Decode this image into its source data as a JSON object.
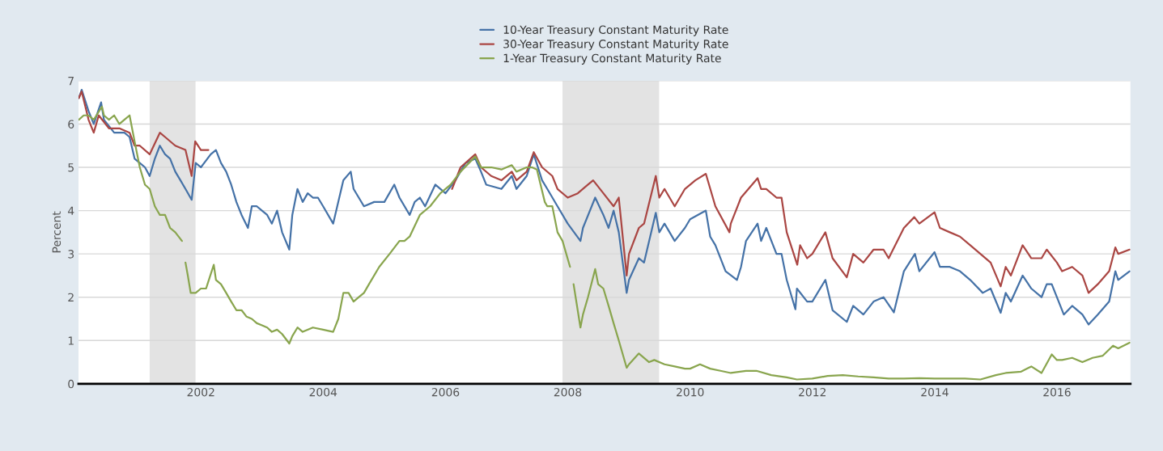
{
  "chart_data": {
    "type": "line",
    "ylabel": "Percent",
    "legend": "top",
    "grid": "y",
    "marker": "none",
    "line_style": "solid",
    "xlim": [
      "2000-01-01",
      "2017-03-15"
    ],
    "xticks": [
      "2002",
      "2004",
      "2006",
      "2008",
      "2010",
      "2012",
      "2014",
      "2016"
    ],
    "ylim": [
      0,
      7
    ],
    "yticks": [
      0,
      1,
      2,
      3,
      4,
      5,
      6,
      7
    ],
    "bands": [
      {
        "axis": "x",
        "from": "2001-03-01",
        "to": "2001-11-30",
        "color": "#e3e3e3"
      },
      {
        "axis": "x",
        "from": "2007-12-01",
        "to": "2009-06-30",
        "color": "#e3e3e3"
      }
    ],
    "series": [
      {
        "name": "10-Year Treasury Constant Maturity Rate",
        "color": "#4572a7",
        "x": [
          "2000-01-03",
          "2000-01-20",
          "2000-03",
          "2000-04",
          "2000-05-15",
          "2000-06",
          "2000-08",
          "2000-10",
          "2000-11",
          "2000-12",
          "2001-01",
          "2001-02",
          "2001-03",
          "2001-04",
          "2001-05",
          "2001-06",
          "2001-07",
          "2001-08",
          "2001-09",
          "2001-10",
          "2001-11-07",
          "2001-11-28",
          "2001-12",
          "2002-01",
          "2002-03",
          "2002-04",
          "2002-05",
          "2002-06",
          "2002-07",
          "2002-08",
          "2002-09",
          "2002-10-09",
          "2002-11",
          "2002-12",
          "2003-01",
          "2003-02",
          "2003-03",
          "2003-04",
          "2003-05",
          "2003-06-13",
          "2003-07",
          "2003-08",
          "2003-09",
          "2003-10",
          "2003-11",
          "2003-12",
          "2004-01",
          "2004-03",
          "2004-05",
          "2004-06-14",
          "2004-07",
          "2004-09",
          "2004-11",
          "2005-01",
          "2005-03",
          "2005-04",
          "2005-06",
          "2005-07",
          "2005-08",
          "2005-09",
          "2005-11",
          "2006-01",
          "2006-03",
          "2006-05",
          "2006-06-28",
          "2006-08",
          "2006-09",
          "2006-12",
          "2007-02",
          "2007-03",
          "2007-05",
          "2007-06-12",
          "2007-08",
          "2007-09",
          "2007-11",
          "2008-01",
          "2008-03-17",
          "2008-04",
          "2008-06-13",
          "2008-08",
          "2008-09",
          "2008-10",
          "2008-11",
          "2008-12-18",
          "2009-01",
          "2009-03",
          "2009-04",
          "2009-06-10",
          "2009-07",
          "2009-08",
          "2009-10",
          "2009-12",
          "2010-01",
          "2010-04-05",
          "2010-05",
          "2010-06",
          "2010-08",
          "2010-10-08",
          "2010-11",
          "2010-12",
          "2011-02-08",
          "2011-03",
          "2011-04",
          "2011-06",
          "2011-07",
          "2011-08",
          "2011-09-22",
          "2011-10",
          "2011-12",
          "2012-01",
          "2012-03-19",
          "2012-05",
          "2012-07-25",
          "2012-09",
          "2012-11",
          "2013-01",
          "2013-03",
          "2013-05-02",
          "2013-07",
          "2013-09-05",
          "2013-10",
          "2013-12-31",
          "2014-02",
          "2014-04",
          "2014-06",
          "2014-08",
          "2014-10-15",
          "2014-12",
          "2015-01-30",
          "2015-03",
          "2015-04",
          "2015-06-10",
          "2015-08",
          "2015-10",
          "2015-11",
          "2015-12",
          "2016-02-11",
          "2016-04",
          "2016-06",
          "2016-07-08",
          "2016-09",
          "2016-11-08",
          "2016-12-15",
          "2017-01",
          "2017-03-10"
        ],
        "values": [
          6.6,
          6.79,
          6.3,
          6.0,
          6.5,
          6.1,
          5.8,
          5.8,
          5.7,
          5.2,
          5.1,
          5.0,
          4.8,
          5.2,
          5.5,
          5.3,
          5.2,
          4.9,
          4.7,
          4.5,
          4.25,
          5.0,
          5.1,
          5.0,
          5.3,
          5.4,
          5.1,
          4.9,
          4.6,
          4.2,
          3.9,
          3.6,
          4.1,
          4.1,
          4.0,
          3.9,
          3.7,
          4.0,
          3.5,
          3.1,
          3.9,
          4.5,
          4.2,
          4.4,
          4.3,
          4.3,
          4.1,
          3.7,
          4.7,
          4.9,
          4.5,
          4.1,
          4.2,
          4.2,
          4.6,
          4.3,
          3.9,
          4.2,
          4.3,
          4.1,
          4.6,
          4.4,
          4.7,
          5.1,
          5.2,
          4.9,
          4.6,
          4.5,
          4.8,
          4.5,
          4.8,
          5.3,
          4.7,
          4.5,
          4.1,
          3.7,
          3.3,
          3.6,
          4.3,
          3.9,
          3.6,
          4.0,
          3.5,
          2.1,
          2.4,
          2.9,
          2.8,
          3.95,
          3.5,
          3.7,
          3.3,
          3.6,
          3.8,
          4.0,
          3.4,
          3.2,
          2.6,
          2.4,
          2.7,
          3.3,
          3.7,
          3.3,
          3.6,
          3.0,
          3.0,
          2.4,
          1.72,
          2.2,
          1.9,
          1.9,
          2.4,
          1.7,
          1.43,
          1.8,
          1.6,
          1.9,
          2.0,
          1.65,
          2.6,
          3.0,
          2.6,
          3.04,
          2.7,
          2.7,
          2.6,
          2.4,
          2.1,
          2.2,
          1.64,
          2.1,
          1.9,
          2.5,
          2.2,
          2.0,
          2.3,
          2.3,
          1.6,
          1.8,
          1.6,
          1.37,
          1.6,
          1.9,
          2.6,
          2.4,
          2.6
        ]
      },
      {
        "name": "30-Year Treasury Constant Maturity Rate",
        "color": "#aa4643",
        "x": [
          "2000-01-03",
          "2000-01-20",
          "2000-03",
          "2000-04",
          "2000-05",
          "2000-07",
          "2000-09",
          "2000-11",
          "2000-12",
          "2001-01",
          "2001-03",
          "2001-05",
          "2001-06",
          "2001-08",
          "2001-10",
          "2001-11-07",
          "2001-11-28",
          "2002-01",
          "2002-02-15",
          "2002-02-20",
          "2006-02-09",
          "2006-04",
          "2006-06-28",
          "2006-08",
          "2006-10",
          "2006-12",
          "2007-02",
          "2007-03",
          "2007-05",
          "2007-06-12",
          "2007-08",
          "2007-10",
          "2007-11",
          "2008-01",
          "2008-03",
          "2008-05",
          "2008-06",
          "2008-08",
          "2008-10",
          "2008-11",
          "2008-12-18",
          "2009-01",
          "2009-03",
          "2009-04",
          "2009-06-10",
          "2009-07",
          "2009-08",
          "2009-10",
          "2009-12",
          "2010-02",
          "2010-04-05",
          "2010-06",
          "2010-08-24",
          "2010-09",
          "2010-11",
          "2011-02-08",
          "2011-03",
          "2011-04",
          "2011-06",
          "2011-07",
          "2011-08",
          "2011-10-03",
          "2011-10-20",
          "2011-12",
          "2012-01",
          "2012-03-19",
          "2012-05",
          "2012-07-25",
          "2012-09",
          "2012-11",
          "2013-01",
          "2013-03",
          "2013-04",
          "2013-07",
          "2013-09",
          "2013-10",
          "2013-12-31",
          "2014-02",
          "2014-04",
          "2014-06",
          "2014-08",
          "2014-10",
          "2014-12",
          "2015-01-30",
          "2015-03",
          "2015-04",
          "2015-06-10",
          "2015-08",
          "2015-10",
          "2015-11",
          "2016-01",
          "2016-02",
          "2016-04",
          "2016-06",
          "2016-07-08",
          "2016-09",
          "2016-11-08",
          "2016-12-15",
          "2017-01",
          "2017-03-10"
        ],
        "values": [
          6.6,
          6.75,
          6.1,
          5.8,
          6.2,
          5.9,
          5.9,
          5.8,
          5.5,
          5.5,
          5.3,
          5.8,
          5.7,
          5.5,
          5.4,
          4.8,
          5.6,
          5.4,
          5.4,
          null,
          4.5,
          5.0,
          5.3,
          5.0,
          4.8,
          4.7,
          4.9,
          4.7,
          4.9,
          5.35,
          5.0,
          4.8,
          4.5,
          4.3,
          4.4,
          4.6,
          4.7,
          4.4,
          4.1,
          4.3,
          2.5,
          3.0,
          3.6,
          3.7,
          4.8,
          4.3,
          4.5,
          4.1,
          4.5,
          4.7,
          4.85,
          4.1,
          3.5,
          3.7,
          4.3,
          4.75,
          4.5,
          4.5,
          4.3,
          4.3,
          3.5,
          2.75,
          3.2,
          2.9,
          3.0,
          3.5,
          2.9,
          2.46,
          3.0,
          2.8,
          3.1,
          3.1,
          2.9,
          3.6,
          3.85,
          3.7,
          3.96,
          3.6,
          3.5,
          3.4,
          3.2,
          3.0,
          2.8,
          2.25,
          2.7,
          2.5,
          3.2,
          2.9,
          2.9,
          3.1,
          2.8,
          2.6,
          2.7,
          2.5,
          2.1,
          2.3,
          2.6,
          3.15,
          3.0,
          3.1
        ]
      },
      {
        "name": "1-Year Treasury Constant Maturity Rate",
        "color": "#89a54e",
        "x": [
          "2000-01-03",
          "2000-02",
          "2000-03",
          "2000-04",
          "2000-05-20",
          "2000-06",
          "2000-07",
          "2000-08",
          "2000-09",
          "2000-10",
          "2000-11",
          "2000-12",
          "2001-01",
          "2001-02",
          "2001-03",
          "2001-04",
          "2001-05",
          "2001-06",
          "2001-07",
          "2001-08",
          "2001-09-10",
          "2001-09-20",
          "2001-10-01",
          "2001-10-15",
          "2001-11",
          "2001-12",
          "2002-01",
          "2002-02",
          "2002-03-19",
          "2002-04",
          "2002-05",
          "2002-06",
          "2002-07",
          "2002-08",
          "2002-09",
          "2002-10",
          "2002-11",
          "2002-12",
          "2003-01",
          "2003-02",
          "2003-03",
          "2003-04",
          "2003-05",
          "2003-06-13",
          "2003-07",
          "2003-08",
          "2003-09",
          "2003-11",
          "2004-01",
          "2004-03",
          "2004-04",
          "2004-05",
          "2004-06",
          "2004-07",
          "2004-08",
          "2004-09",
          "2004-10",
          "2004-12",
          "2005-02",
          "2005-04",
          "2005-05",
          "2005-06",
          "2005-08",
          "2005-10",
          "2005-12",
          "2006-02",
          "2006-04",
          "2006-06-28",
          "2006-08",
          "2006-10",
          "2006-12",
          "2007-02",
          "2007-03",
          "2007-05",
          "2007-06",
          "2007-07",
          "2007-08-17",
          "2007-09",
          "2007-10",
          "2007-11",
          "2007-12",
          "2008-01-15",
          "2008-01-25",
          "2008-02-05",
          "2008-03-17",
          "2008-04",
          "2008-05",
          "2008-06-13",
          "2008-07",
          "2008-08",
          "2008-09",
          "2008-10",
          "2008-11",
          "2008-12-18",
          "2009-01",
          "2009-03",
          "2009-05",
          "2009-06",
          "2009-08",
          "2009-10",
          "2009-12",
          "2010-01",
          "2010-03",
          "2010-05",
          "2010-07",
          "2010-09",
          "2010-12",
          "2011-02",
          "2011-05",
          "2011-08",
          "2011-10",
          "2012-01",
          "2012-04",
          "2012-07",
          "2012-10",
          "2013-01",
          "2013-04",
          "2013-07",
          "2013-10",
          "2014-01",
          "2014-04",
          "2014-07",
          "2014-10",
          "2015-01",
          "2015-03",
          "2015-06",
          "2015-08",
          "2015-10",
          "2015-12",
          "2016-01",
          "2016-02",
          "2016-04",
          "2016-06",
          "2016-08",
          "2016-10",
          "2016-12",
          "2017-01",
          "2017-03-10"
        ],
        "values": [
          6.1,
          6.2,
          6.2,
          6.1,
          6.4,
          6.2,
          6.1,
          6.2,
          6.0,
          6.1,
          6.2,
          5.6,
          5.0,
          4.6,
          4.5,
          4.1,
          3.9,
          3.9,
          3.6,
          3.5,
          3.3,
          null,
          2.8,
          2.5,
          2.1,
          2.1,
          2.2,
          2.2,
          2.75,
          2.4,
          2.3,
          2.1,
          1.9,
          1.7,
          1.7,
          1.55,
          1.5,
          1.4,
          1.35,
          1.3,
          1.2,
          1.25,
          1.15,
          0.93,
          1.1,
          1.3,
          1.2,
          1.3,
          1.25,
          1.2,
          1.5,
          2.1,
          2.1,
          1.9,
          2.0,
          2.1,
          2.3,
          2.7,
          3.0,
          3.3,
          3.3,
          3.4,
          3.9,
          4.1,
          4.4,
          4.6,
          4.9,
          5.25,
          5.0,
          5.0,
          4.95,
          5.05,
          4.9,
          5.0,
          5.0,
          4.95,
          4.2,
          4.1,
          4.1,
          3.5,
          3.3,
          2.7,
          null,
          2.3,
          1.3,
          1.6,
          2.0,
          2.65,
          2.3,
          2.2,
          1.8,
          1.4,
          1.0,
          0.37,
          0.45,
          0.7,
          0.5,
          0.55,
          0.45,
          0.4,
          0.35,
          0.35,
          0.45,
          0.35,
          0.3,
          0.25,
          0.3,
          0.3,
          0.2,
          0.15,
          0.1,
          0.12,
          0.18,
          0.2,
          0.17,
          0.15,
          0.12,
          0.12,
          0.13,
          0.12,
          0.12,
          0.12,
          0.1,
          0.2,
          0.25,
          0.28,
          0.4,
          0.25,
          0.68,
          0.55,
          0.55,
          0.6,
          0.5,
          0.6,
          0.65,
          0.88,
          0.82,
          0.95
        ]
      }
    ]
  }
}
